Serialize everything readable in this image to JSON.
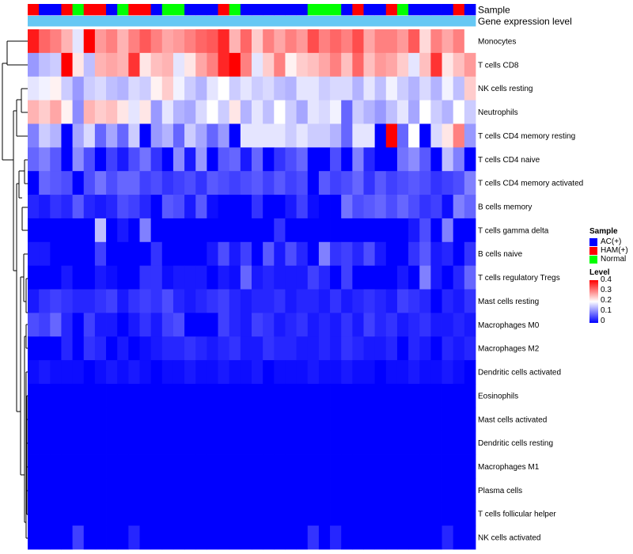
{
  "chart_data": {
    "type": "heatmap",
    "annotation_labels": {
      "sample": "Sample",
      "gene_expression": "Gene expression level"
    },
    "legend": {
      "sample_title": "Sample",
      "sample_entries": [
        {
          "name": "AC(+)",
          "color": "#0000ff"
        },
        {
          "name": "HAM(+)",
          "color": "#ff0000"
        },
        {
          "name": "Normal",
          "color": "#00ff00"
        }
      ],
      "level_title": "Level",
      "level_ticks": [
        "0.4",
        "0.3",
        "0.2",
        "0.1",
        "0"
      ],
      "level_range": [
        0,
        0.4
      ],
      "colors": {
        "low": "#0000ff",
        "mid": "#ffffff",
        "high": "#ff0000"
      }
    },
    "gene_expression_color": "#66c8f4",
    "sample_groups": [
      "HAM(+)",
      "AC(+)",
      "AC(+)",
      "HAM(+)",
      "Normal",
      "HAM(+)",
      "HAM(+)",
      "AC(+)",
      "Normal",
      "HAM(+)",
      "HAM(+)",
      "AC(+)",
      "Normal",
      "Normal",
      "AC(+)",
      "AC(+)",
      "AC(+)",
      "HAM(+)",
      "Normal",
      "AC(+)",
      "AC(+)",
      "AC(+)",
      "AC(+)",
      "AC(+)",
      "AC(+)",
      "Normal",
      "Normal",
      "Normal",
      "AC(+)",
      "HAM(+)",
      "AC(+)",
      "AC(+)",
      "HAM(+)",
      "Normal",
      "AC(+)",
      "AC(+)",
      "AC(+)",
      "AC(+)",
      "HAM(+)",
      "AC(+)"
    ],
    "rows": [
      {
        "name": "Monocytes",
        "values": [
          0.38,
          0.32,
          0.3,
          0.26,
          0.18,
          0.4,
          0.28,
          0.3,
          0.26,
          0.3,
          0.33,
          0.3,
          0.27,
          0.28,
          0.3,
          0.32,
          0.33,
          0.37,
          0.26,
          0.32,
          0.24,
          0.3,
          0.27,
          0.3,
          0.28,
          0.34,
          0.3,
          0.32,
          0.3,
          0.34,
          0.27,
          0.3,
          0.3,
          0.28,
          0.33,
          0.23,
          0.3,
          0.27,
          0.3,
          0.2
        ]
      },
      {
        "name": "T cells CD8",
        "values": [
          0.12,
          0.15,
          0.16,
          0.4,
          0.22,
          0.15,
          0.26,
          0.27,
          0.26,
          0.36,
          0.22,
          0.25,
          0.26,
          0.18,
          0.22,
          0.27,
          0.3,
          0.37,
          0.4,
          0.3,
          0.18,
          0.24,
          0.3,
          0.21,
          0.24,
          0.25,
          0.27,
          0.3,
          0.25,
          0.32,
          0.25,
          0.28,
          0.27,
          0.24,
          0.18,
          0.25,
          0.36,
          0.22,
          0.25,
          0.28
        ]
      },
      {
        "name": "NK cells resting",
        "values": [
          0.18,
          0.19,
          0.21,
          0.16,
          0.12,
          0.16,
          0.17,
          0.15,
          0.14,
          0.17,
          0.16,
          0.21,
          0.24,
          0.19,
          0.16,
          0.14,
          0.18,
          0.2,
          0.16,
          0.18,
          0.16,
          0.17,
          0.15,
          0.14,
          0.18,
          0.18,
          0.16,
          0.17,
          0.17,
          0.14,
          0.18,
          0.15,
          0.19,
          0.16,
          0.14,
          0.17,
          0.14,
          0.19,
          0.15,
          0.24
        ]
      },
      {
        "name": "Neutrophils",
        "values": [
          0.26,
          0.24,
          0.27,
          0.21,
          0.11,
          0.26,
          0.24,
          0.25,
          0.22,
          0.18,
          0.22,
          0.12,
          0.18,
          0.14,
          0.13,
          0.17,
          0.2,
          0.16,
          0.22,
          0.14,
          0.18,
          0.15,
          0.2,
          0.16,
          0.13,
          0.18,
          0.17,
          0.19,
          0.08,
          0.16,
          0.14,
          0.12,
          0.15,
          0.18,
          0.13,
          0.2,
          0.16,
          0.14,
          0.2,
          0.16
        ]
      },
      {
        "name": "T cells CD4 memory resting",
        "values": [
          0.1,
          0.16,
          0.14,
          0.0,
          0.13,
          0.17,
          0.08,
          0.13,
          0.08,
          0.16,
          0.0,
          0.12,
          0.14,
          0.08,
          0.16,
          0.13,
          0.08,
          0.12,
          0.0,
          0.18,
          0.18,
          0.18,
          0.18,
          0.16,
          0.18,
          0.16,
          0.16,
          0.14,
          0.08,
          0.18,
          0.18,
          0.0,
          0.4,
          0.08,
          0.2,
          0.0,
          0.17,
          0.22,
          0.3,
          0.12
        ]
      },
      {
        "name": "T cells CD4 naive",
        "values": [
          0.08,
          0.1,
          0.07,
          0.0,
          0.11,
          0.06,
          0.0,
          0.05,
          0.02,
          0.06,
          0.09,
          0.04,
          0.0,
          0.11,
          0.02,
          0.12,
          0.0,
          0.07,
          0.08,
          0.02,
          0.08,
          0.0,
          0.04,
          0.06,
          0.08,
          0.0,
          0.0,
          0.06,
          0.0,
          0.1,
          0.03,
          0.0,
          0.0,
          0.09,
          0.11,
          0.07,
          0.0,
          0.15,
          0.1,
          0.0
        ]
      },
      {
        "name": "T cells CD4 memory activated",
        "values": [
          0.0,
          0.08,
          0.07,
          0.06,
          0.0,
          0.06,
          0.09,
          0.06,
          0.08,
          0.08,
          0.05,
          0.06,
          0.04,
          0.05,
          0.06,
          0.04,
          0.07,
          0.06,
          0.05,
          0.06,
          0.07,
          0.05,
          0.07,
          0.05,
          0.06,
          0.0,
          0.07,
          0.05,
          0.06,
          0.08,
          0.04,
          0.07,
          0.05,
          0.06,
          0.07,
          0.06,
          0.04,
          0.05,
          0.06,
          0.1
        ]
      },
      {
        "name": "B cells memory",
        "values": [
          0.03,
          0.02,
          0.04,
          0.03,
          0.07,
          0.03,
          0.02,
          0.03,
          0.06,
          0.05,
          0.03,
          0.0,
          0.07,
          0.06,
          0.02,
          0.07,
          0.01,
          0.0,
          0.0,
          0.0,
          0.04,
          0.0,
          0.0,
          0.02,
          0.05,
          0.01,
          0.0,
          0.0,
          0.09,
          0.06,
          0.07,
          0.08,
          0.06,
          0.08,
          0.06,
          0.04,
          0.05,
          0.01,
          0.1,
          0.08
        ]
      },
      {
        "name": "T cells gamma delta",
        "values": [
          0.0,
          0.0,
          0.0,
          0.0,
          0.0,
          0.0,
          0.15,
          0.0,
          0.02,
          0.0,
          0.1,
          0.0,
          0.0,
          0.0,
          0.0,
          0.0,
          0.0,
          0.0,
          0.0,
          0.0,
          0.0,
          0.0,
          0.04,
          0.0,
          0.0,
          0.0,
          0.0,
          0.0,
          0.0,
          0.0,
          0.0,
          0.0,
          0.0,
          0.0,
          0.02,
          0.06,
          0.0,
          0.1,
          0.0,
          0.0
        ]
      },
      {
        "name": "B cells naive",
        "values": [
          0.02,
          0.02,
          0.0,
          0.0,
          0.0,
          0.0,
          0.05,
          0.0,
          0.0,
          0.0,
          0.0,
          0.04,
          0.0,
          0.0,
          0.0,
          0.0,
          0.02,
          0.06,
          0.02,
          0.05,
          0.0,
          0.07,
          0.02,
          0.06,
          0.03,
          0.0,
          0.1,
          0.04,
          0.05,
          0.03,
          0.06,
          0.02,
          0.0,
          0.0,
          0.04,
          0.07,
          0.02,
          0.03,
          0.0,
          0.04
        ]
      },
      {
        "name": "T cells regulatory  Tregs",
        "values": [
          0.0,
          0.0,
          0.0,
          0.02,
          0.0,
          0.0,
          0.02,
          0.01,
          0.0,
          0.0,
          0.04,
          0.04,
          0.01,
          0.02,
          0.02,
          0.02,
          0.0,
          0.02,
          0.01,
          0.08,
          0.02,
          0.03,
          0.02,
          0.02,
          0.02,
          0.05,
          0.03,
          0.0,
          0.05,
          0.0,
          0.0,
          0.0,
          0.0,
          0.02,
          0.0,
          0.1,
          0.02,
          0.0,
          0.03,
          0.08
        ]
      },
      {
        "name": "Mast cells resting",
        "values": [
          0.02,
          0.04,
          0.05,
          0.04,
          0.03,
          0.03,
          0.04,
          0.05,
          0.02,
          0.04,
          0.05,
          0.04,
          0.06,
          0.03,
          0.02,
          0.03,
          0.04,
          0.05,
          0.03,
          0.02,
          0.03,
          0.03,
          0.04,
          0.02,
          0.03,
          0.03,
          0.02,
          0.04,
          0.02,
          0.03,
          0.04,
          0.03,
          0.02,
          0.05,
          0.04,
          0.03,
          0.0,
          0.03,
          0.02,
          0.04
        ]
      },
      {
        "name": "Macrophages M0",
        "values": [
          0.06,
          0.05,
          0.08,
          0.03,
          0.0,
          0.05,
          0.02,
          0.02,
          0.0,
          0.02,
          0.04,
          0.02,
          0.05,
          0.06,
          0.0,
          0.0,
          0.0,
          0.05,
          0.03,
          0.02,
          0.05,
          0.04,
          0.02,
          0.03,
          0.04,
          0.02,
          0.03,
          0.02,
          0.04,
          0.02,
          0.05,
          0.03,
          0.04,
          0.02,
          0.03,
          0.04,
          0.02,
          0.02,
          0.03,
          0.02
        ]
      },
      {
        "name": "Macrophages M2",
        "values": [
          0.0,
          0.0,
          0.0,
          0.03,
          0.0,
          0.04,
          0.03,
          0.0,
          0.02,
          0.0,
          0.01,
          0.02,
          0.03,
          0.03,
          0.04,
          0.03,
          0.02,
          0.03,
          0.04,
          0.02,
          0.02,
          0.04,
          0.03,
          0.03,
          0.02,
          0.02,
          0.03,
          0.02,
          0.04,
          0.03,
          0.02,
          0.02,
          0.03,
          0.0,
          0.03,
          0.02,
          0.0,
          0.03,
          0.02,
          0.03
        ]
      },
      {
        "name": "Dendritic cells activated",
        "values": [
          0.01,
          0.02,
          0.01,
          0.01,
          0.01,
          0.0,
          0.01,
          0.02,
          0.01,
          0.02,
          0.01,
          0.0,
          0.01,
          0.01,
          0.02,
          0.01,
          0.01,
          0.02,
          0.01,
          0.01,
          0.02,
          0.0,
          0.01,
          0.01,
          0.01,
          0.02,
          0.01,
          0.01,
          0.02,
          0.01,
          0.01,
          0.0,
          0.01,
          0.01,
          0.02,
          0.01,
          0.01,
          0.02,
          0.01,
          0.0
        ]
      },
      {
        "name": "Eosinophils",
        "values": [
          0,
          0,
          0,
          0,
          0,
          0,
          0,
          0,
          0,
          0,
          0,
          0,
          0,
          0,
          0,
          0,
          0,
          0,
          0,
          0,
          0,
          0,
          0,
          0,
          0,
          0,
          0,
          0,
          0,
          0,
          0,
          0,
          0,
          0,
          0,
          0,
          0,
          0,
          0,
          0
        ]
      },
      {
        "name": "Mast cells activated",
        "values": [
          0,
          0,
          0,
          0,
          0,
          0,
          0,
          0,
          0,
          0,
          0,
          0,
          0,
          0,
          0,
          0,
          0,
          0,
          0,
          0,
          0,
          0,
          0,
          0,
          0,
          0,
          0,
          0,
          0,
          0,
          0,
          0,
          0,
          0,
          0,
          0,
          0,
          0,
          0,
          0
        ]
      },
      {
        "name": "Dendritic cells resting",
        "values": [
          0,
          0,
          0,
          0,
          0,
          0,
          0,
          0,
          0,
          0,
          0,
          0,
          0,
          0,
          0,
          0,
          0,
          0,
          0,
          0,
          0,
          0,
          0,
          0,
          0,
          0,
          0,
          0,
          0,
          0,
          0,
          0,
          0,
          0,
          0,
          0,
          0,
          0,
          0,
          0
        ]
      },
      {
        "name": "Macrophages M1",
        "values": [
          0,
          0,
          0,
          0,
          0,
          0,
          0,
          0,
          0,
          0,
          0,
          0,
          0,
          0,
          0,
          0,
          0,
          0,
          0,
          0,
          0,
          0,
          0,
          0,
          0,
          0,
          0,
          0,
          0,
          0,
          0,
          0,
          0,
          0,
          0,
          0,
          0,
          0,
          0,
          0
        ]
      },
      {
        "name": "Plasma cells",
        "values": [
          0,
          0,
          0,
          0,
          0,
          0,
          0,
          0,
          0,
          0,
          0,
          0,
          0,
          0,
          0,
          0,
          0,
          0,
          0,
          0,
          0,
          0,
          0,
          0,
          0,
          0,
          0,
          0,
          0,
          0,
          0,
          0,
          0,
          0,
          0,
          0,
          0,
          0,
          0,
          0
        ]
      },
      {
        "name": "T cells follicular helper",
        "values": [
          0,
          0,
          0,
          0,
          0,
          0,
          0,
          0,
          0,
          0,
          0,
          0,
          0,
          0,
          0,
          0,
          0,
          0,
          0,
          0,
          0,
          0,
          0,
          0,
          0,
          0,
          0,
          0,
          0,
          0,
          0,
          0,
          0,
          0,
          0,
          0,
          0,
          0,
          0,
          0
        ]
      },
      {
        "name": "NK cells activated",
        "values": [
          0,
          0,
          0,
          0,
          0.05,
          0,
          0,
          0,
          0,
          0.03,
          0,
          0,
          0,
          0,
          0,
          0,
          0,
          0,
          0,
          0,
          0,
          0,
          0,
          0,
          0,
          0.04,
          0,
          0.03,
          0,
          0,
          0,
          0,
          0,
          0,
          0,
          0,
          0,
          0.03,
          0,
          0
        ]
      }
    ]
  }
}
